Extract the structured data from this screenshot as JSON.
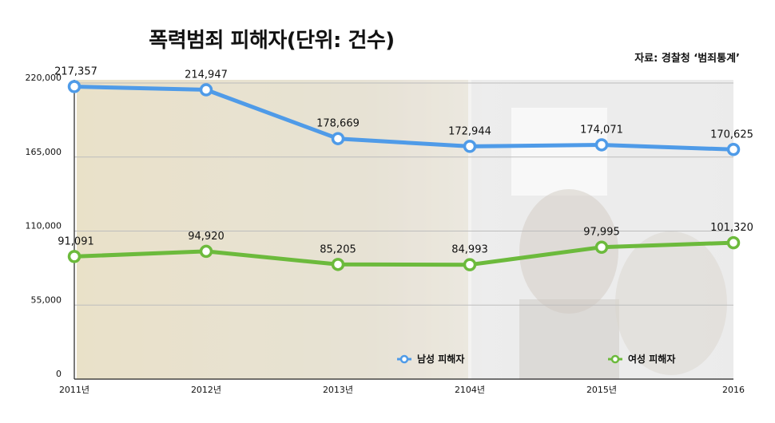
{
  "title": "폭력범죄 피해자(단위: 건수)",
  "source": "자료: 경찰청 ‘범죄통계’",
  "colors": {
    "male": "#4f9be8",
    "female": "#6cba3c"
  },
  "chart_data": {
    "type": "line",
    "title": "폭력범죄 피해자(단위: 건수)",
    "categories": [
      "2011년",
      "2012년",
      "2013년",
      "2104년",
      "2015년",
      "2016"
    ],
    "ylim": [
      0,
      220000
    ],
    "yticks": [
      "0",
      "55,000",
      "110,000",
      "165,000",
      "220,000"
    ],
    "grid": true,
    "legend_position": "bottom-right",
    "series": [
      {
        "name": "남성 피해자",
        "color": "#4f9be8",
        "values": [
          217357,
          214947,
          178669,
          172944,
          174071,
          170625
        ],
        "labels": [
          "217,357",
          "214,947",
          "178,669",
          "172,944",
          "174,071",
          "170,625"
        ]
      },
      {
        "name": "여성 피해자",
        "color": "#6cba3c",
        "values": [
          91091,
          94920,
          85205,
          84993,
          97995,
          101320
        ],
        "labels": [
          "91,091",
          "94,920",
          "85,205",
          "84,993",
          "97,995",
          "101,320"
        ]
      }
    ]
  }
}
